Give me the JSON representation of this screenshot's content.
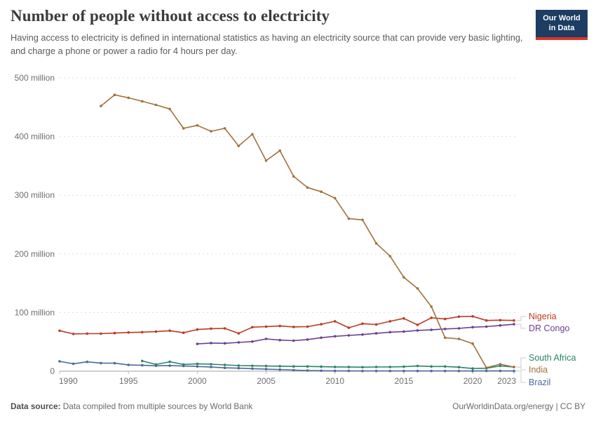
{
  "header": {
    "title": "Number of people without access to electricity",
    "subtitle": "Having access to electricity is defined in international statistics as having an electricity source that can provide very basic lighting, and charge a phone or power a radio for 4 hours per day.",
    "logo": {
      "line1": "Our World",
      "line2": "in Data",
      "bg_color": "#1d3d63",
      "accent_color": "#d8352a"
    }
  },
  "footer": {
    "datasource_label": "Data source:",
    "datasource_text": " Data compiled from multiple sources by World Bank",
    "credit": "OurWorldinData.org/energy | CC BY"
  },
  "chart_data": {
    "type": "line",
    "title": "Number of people without access to electricity",
    "unit": "million people",
    "grid": true,
    "legend_position": "right",
    "x_axis": {
      "start": 1990,
      "end": 2023,
      "ticks": [
        1990,
        1995,
        2000,
        2005,
        2010,
        2015,
        2020,
        2023
      ]
    },
    "y_axis": {
      "min": 0,
      "max": 500,
      "unit": "million",
      "tick_labels": [
        "0",
        "100 million",
        "200 million",
        "300 million",
        "400 million",
        "500 million"
      ]
    },
    "series": [
      {
        "name": "Nigeria",
        "color": "#bc3a21",
        "start_year": 1993,
        "start_year_actual": 1990,
        "values": [
          69,
          63.5,
          64,
          64,
          65,
          66,
          66.5,
          67.5,
          69,
          65.5,
          71,
          72.5,
          73,
          64.5,
          75,
          76,
          77,
          75.5,
          76,
          80,
          85,
          74,
          81,
          79.5,
          85,
          90,
          79,
          91,
          89,
          93,
          93.5,
          86.5,
          87,
          86.5
        ]
      },
      {
        "name": "DR Congo",
        "color": "#6d3e91",
        "start_year_actual": 2000,
        "values": [
          46.5,
          48,
          47.5,
          49,
          50.5,
          55,
          53,
          52,
          54,
          57,
          59.5,
          61,
          62.5,
          64.5,
          66.5,
          67.5,
          69.5,
          70.5,
          72,
          73,
          75,
          76,
          78,
          80
        ]
      },
      {
        "name": "South Africa",
        "color": "#2c8465",
        "start_year_actual": 1996,
        "values": [
          17.5,
          11.5,
          16,
          11.5,
          12.5,
          12,
          10.8,
          9.6,
          9.2,
          8.9,
          8.5,
          8.1,
          8.1,
          7.7,
          7.3,
          7,
          6.8,
          7.2,
          7.2,
          7.6,
          8.8,
          8,
          8,
          6.8,
          4.5,
          5,
          9,
          7
        ]
      },
      {
        "name": "India",
        "color": "#a0713c",
        "start_year_actual": 1993,
        "values": [
          452,
          471,
          466,
          460,
          454,
          447,
          414,
          419,
          409,
          414,
          384,
          404,
          359,
          376,
          332,
          313,
          306,
          295,
          260,
          258,
          218,
          196,
          160,
          141,
          110,
          57,
          55,
          47,
          6,
          12,
          7
        ]
      },
      {
        "name": "Brazil",
        "color": "#4c6a9c",
        "start_year_actual": 1990,
        "values": [
          16.7,
          12.7,
          15.9,
          13.9,
          13.6,
          10.7,
          10,
          9.2,
          9.5,
          8.9,
          8,
          7.1,
          5.8,
          5.1,
          4.3,
          3.5,
          2.7,
          1.9,
          1.2,
          0.8,
          0.5,
          0.5,
          0.4,
          0.4,
          0.3,
          0.3,
          0.3,
          0.3,
          0.3,
          0.3,
          0.3,
          0.5,
          0.5,
          0.4
        ]
      }
    ]
  }
}
